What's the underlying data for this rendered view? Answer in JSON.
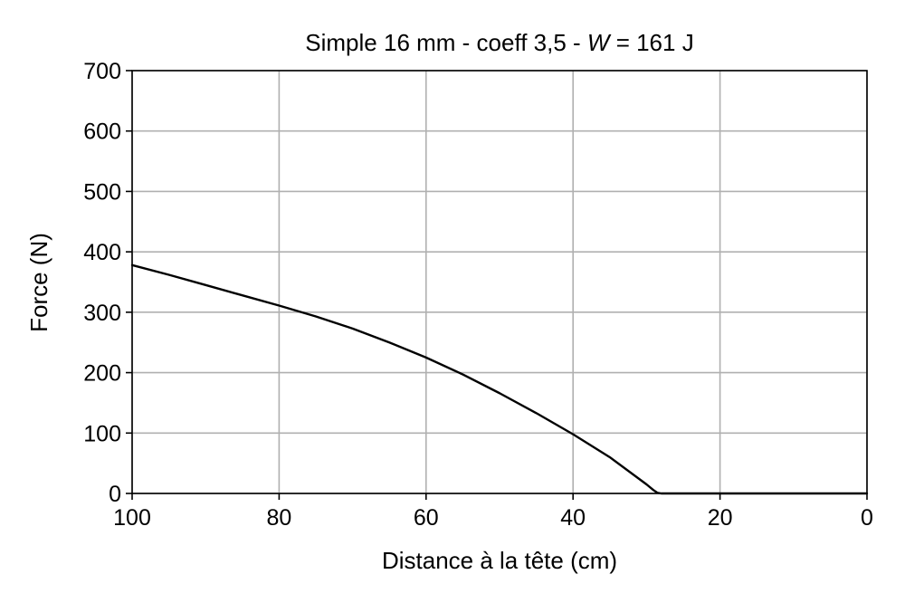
{
  "chart_data": {
    "type": "line",
    "title": {
      "prefix": "Simple 16 mm - coeff 3,5 - ",
      "italic": "W",
      "suffix": " = 161 J"
    },
    "xlabel": "Distance à la tête (cm)",
    "ylabel": "Force (N)",
    "xlim": [
      100,
      0
    ],
    "ylim": [
      0,
      700
    ],
    "x_ticks": [
      100,
      80,
      60,
      40,
      20,
      0
    ],
    "y_ticks": [
      0,
      100,
      200,
      300,
      400,
      500,
      600,
      700
    ],
    "x_tick_labels": [
      "100",
      "80",
      "60",
      "40",
      "20",
      "0"
    ],
    "y_tick_labels": [
      "0",
      "100",
      "200",
      "300",
      "400",
      "500",
      "600",
      "700"
    ],
    "grid": true,
    "legend": "none",
    "series": [
      {
        "color": "#000000",
        "x": [
          100,
          95,
          90,
          85,
          80,
          75,
          70,
          65,
          60,
          55,
          50,
          45,
          40,
          35,
          30,
          29,
          28.5,
          28,
          25,
          20,
          15,
          10,
          5,
          0
        ],
        "y": [
          378,
          362,
          345,
          328,
          311,
          293,
          273,
          250,
          225,
          197,
          166,
          133,
          98,
          60,
          15,
          5,
          1,
          0,
          0,
          0,
          0,
          0,
          0,
          0
        ]
      }
    ]
  }
}
